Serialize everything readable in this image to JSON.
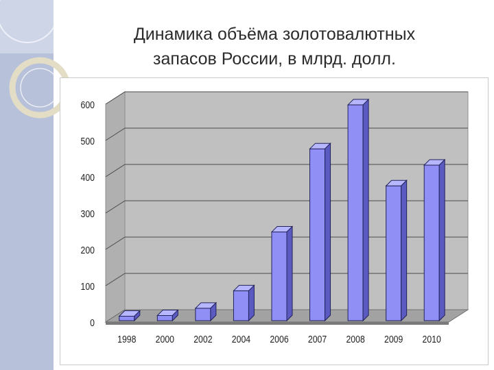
{
  "title_line1": "Динамика объёма золотовалютных",
  "title_line2": "запасов России, в млрд. долл.",
  "colors": {
    "bar_front": "#8f8ff5",
    "bar_top": "#b7b7ff",
    "bar_side": "#5a5ac0",
    "plot_back": "#c0c0c0",
    "plot_floor": "#a2a2a2",
    "side_panel": "#b7c1d9"
  },
  "chart_data": {
    "type": "bar",
    "categories": [
      "1998",
      "2000",
      "2002",
      "2004",
      "2006",
      "2007",
      "2008",
      "2009",
      "2010"
    ],
    "values": [
      16,
      18,
      38,
      86,
      248,
      477,
      598,
      375,
      432
    ],
    "ylim": [
      0,
      600
    ],
    "yticks": [
      "0",
      "100",
      "200",
      "300",
      "400",
      "500",
      "600"
    ],
    "grid": true,
    "style": "3d",
    "xlabel": "",
    "ylabel": ""
  }
}
